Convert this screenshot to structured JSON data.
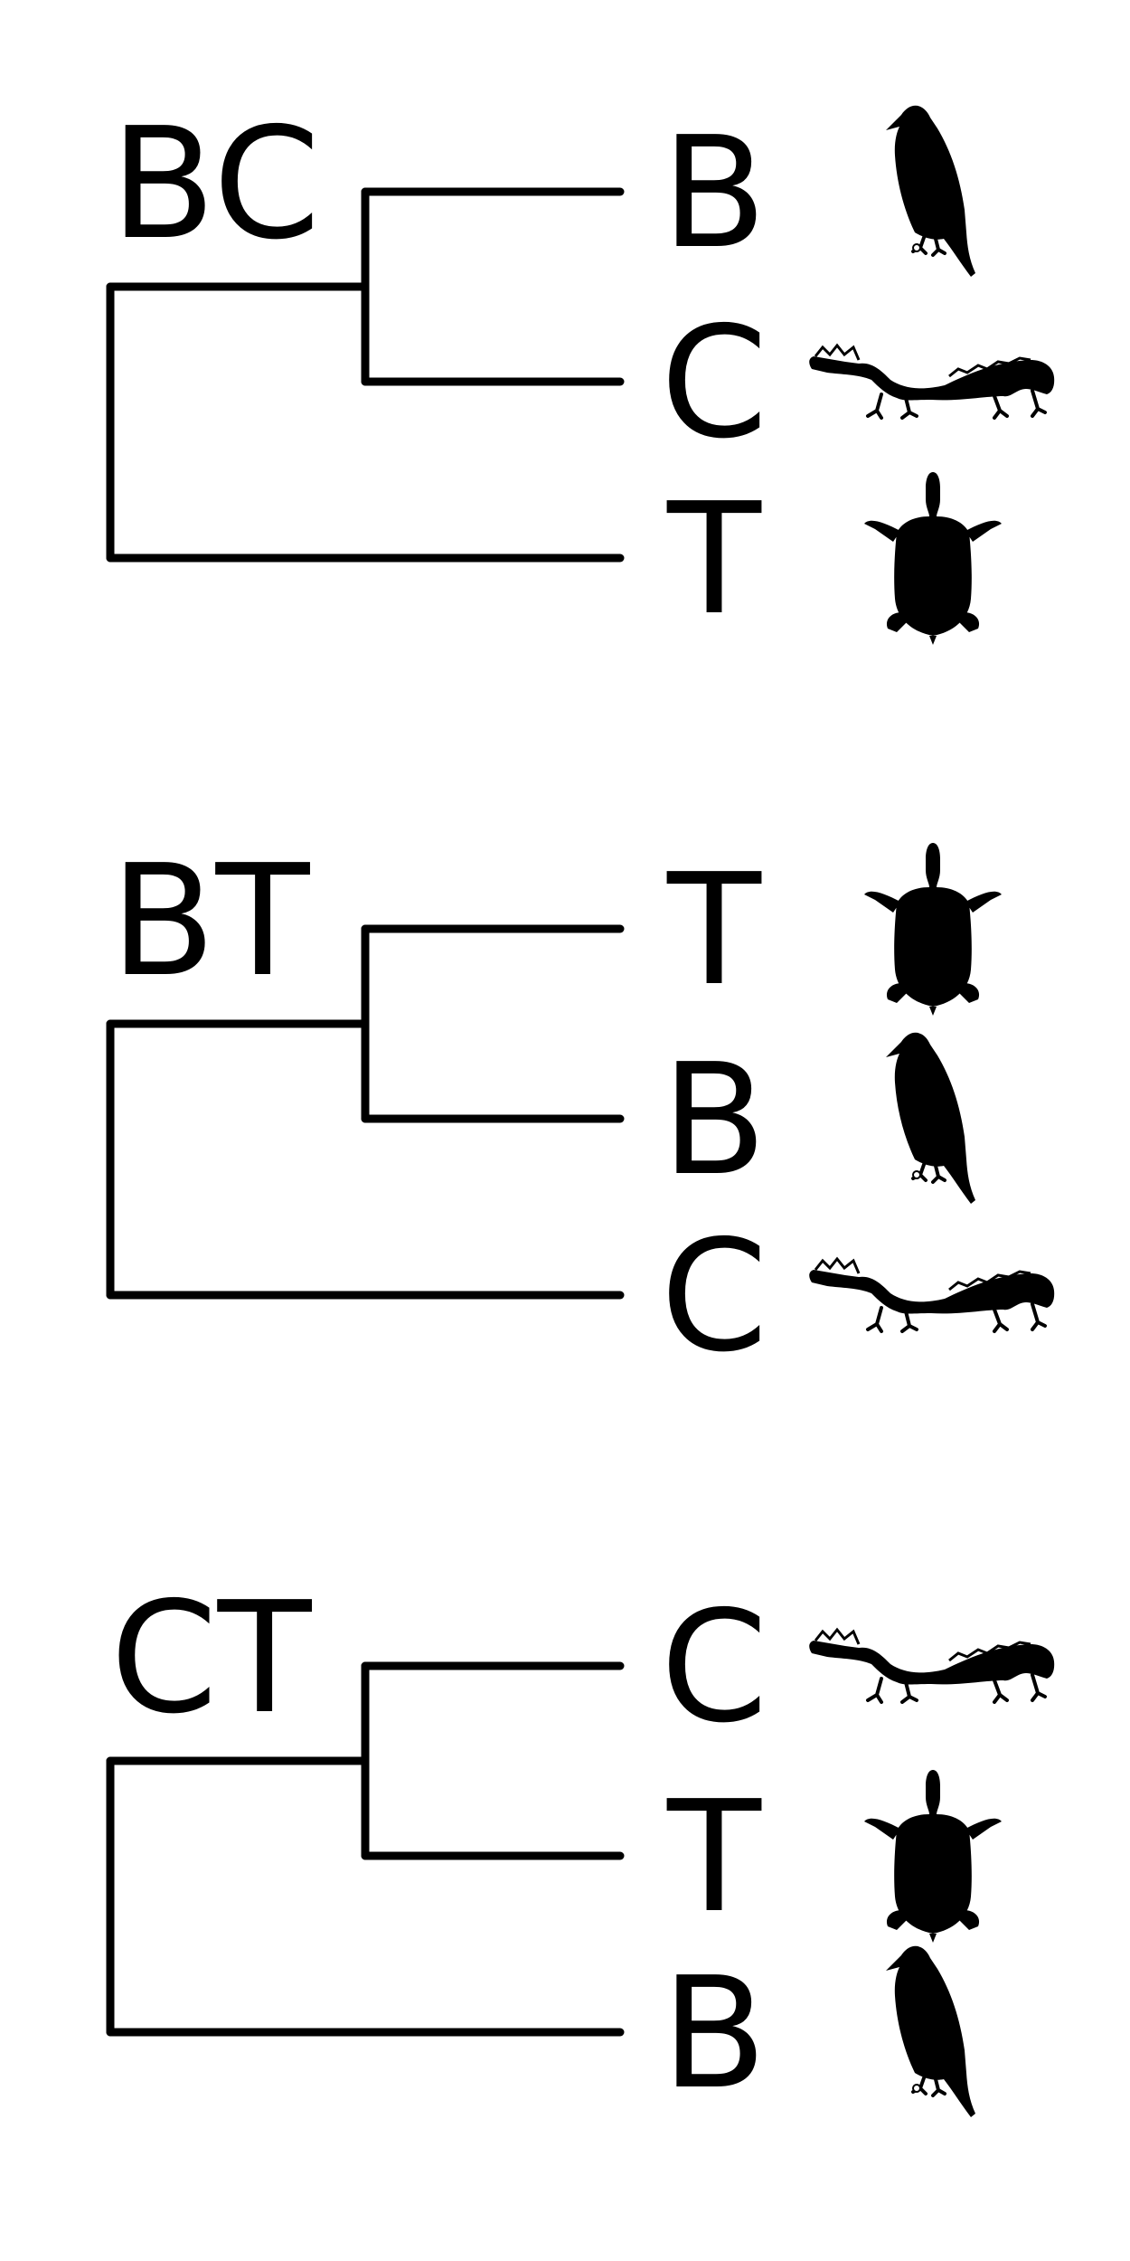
{
  "ink_color": "#000000",
  "trees": [
    {
      "label": "BC",
      "taxa": [
        {
          "letter": "B",
          "icon": "bird-icon"
        },
        {
          "letter": "C",
          "icon": "crocodile-icon"
        },
        {
          "letter": "T",
          "icon": "turtle-icon"
        }
      ]
    },
    {
      "label": "BT",
      "taxa": [
        {
          "letter": "T",
          "icon": "turtle-icon"
        },
        {
          "letter": "B",
          "icon": "bird-icon"
        },
        {
          "letter": "C",
          "icon": "crocodile-icon"
        }
      ]
    },
    {
      "label": "CT",
      "taxa": [
        {
          "letter": "C",
          "icon": "crocodile-icon"
        },
        {
          "letter": "T",
          "icon": "turtle-icon"
        },
        {
          "letter": "B",
          "icon": "bird-icon"
        }
      ]
    }
  ]
}
